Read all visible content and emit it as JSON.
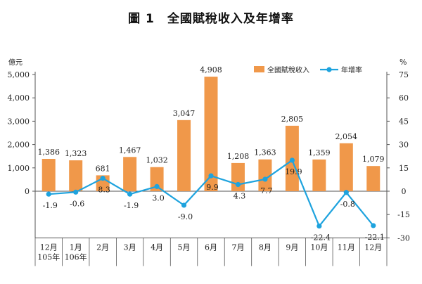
{
  "chart_data": {
    "type": "bar",
    "title": "圖 1　全國賦稅收入及年增率",
    "ylabel_left": "億元",
    "ylabel_right": "%",
    "categories": [
      [
        "12月",
        "105年"
      ],
      [
        "1月",
        "106年"
      ],
      [
        "2月"
      ],
      [
        "3月"
      ],
      [
        "4月"
      ],
      [
        "5月"
      ],
      [
        "6月"
      ],
      [
        "7月"
      ],
      [
        "8月"
      ],
      [
        "9月"
      ],
      [
        "10月"
      ],
      [
        "11月"
      ],
      [
        "12月"
      ]
    ],
    "series": [
      {
        "name": "全國賦稅收入",
        "type": "bar",
        "axis": "left",
        "color": "#f0984a",
        "values": [
          1386,
          1323,
          681,
          1467,
          1032,
          3047,
          4908,
          1208,
          1363,
          2805,
          1359,
          2054,
          1079
        ],
        "labels": [
          "1,386",
          "1,323",
          "681",
          "1,467",
          "1,032",
          "3,047",
          "4,908",
          "1,208",
          "1,363",
          "2,805",
          "1,359",
          "2,054",
          "1,079"
        ]
      },
      {
        "name": "年增率",
        "type": "line",
        "axis": "right",
        "color": "#1ea3de",
        "values": [
          -1.9,
          -0.6,
          8.3,
          -1.9,
          3.0,
          -9.0,
          9.9,
          4.3,
          7.7,
          19.9,
          -22.4,
          -0.8,
          -22.1
        ],
        "labels": [
          "-1.9",
          "-0.6",
          "8.3",
          "-1.9",
          "3.0",
          "-9.0",
          "9.9",
          "4.3",
          "7.7",
          "19.9",
          "-22.4",
          "-0.8",
          "-22.1"
        ]
      }
    ],
    "left_axis": {
      "ticks": [
        "0",
        "1,000",
        "2,000",
        "3,000",
        "4,000",
        "5,000"
      ],
      "tick_values": [
        0,
        1000,
        2000,
        3000,
        4000,
        5000
      ]
    },
    "right_axis": {
      "ticks": [
        "-30",
        "-15",
        "0",
        "15",
        "30",
        "45",
        "60",
        "75"
      ],
      "tick_values": [
        -30,
        -15,
        0,
        15,
        30,
        45,
        60,
        75
      ]
    },
    "ylim_left": [
      -2000,
      5000
    ],
    "ylim_right": [
      -30,
      75
    ],
    "legend_position": "top-right",
    "grid": false
  }
}
